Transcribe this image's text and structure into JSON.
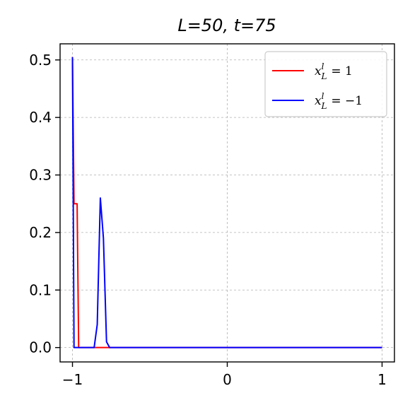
{
  "chart_data": {
    "type": "line",
    "title": "L=50, t=75",
    "xlabel": "",
    "ylabel": "",
    "xlim": [
      -1.08,
      1.08
    ],
    "ylim": [
      -0.025,
      0.528
    ],
    "xticks": [
      -1,
      0,
      1
    ],
    "xtick_labels": [
      "−1",
      "0",
      "1"
    ],
    "yticks": [
      0.0,
      0.1,
      0.2,
      0.3,
      0.4,
      0.5
    ],
    "ytick_labels": [
      "0.0",
      "0.1",
      "0.2",
      "0.3",
      "0.4",
      "0.5"
    ],
    "grid": true,
    "legend_position": "top-right",
    "series": [
      {
        "name": "x_L^l = 1",
        "color": "#ff0000",
        "x": [
          -1.0,
          -0.99,
          -0.98,
          -0.97,
          -0.96,
          -0.95,
          -0.9,
          -0.8,
          -0.5,
          0.0,
          0.5,
          1.0
        ],
        "y": [
          0.505,
          0.25,
          0.25,
          0.25,
          0.0,
          0.0,
          0.0,
          0.0,
          0.0,
          0.0,
          0.0,
          0.0
        ]
      },
      {
        "name": "x_L^l = −1",
        "color": "#0000ff",
        "x": [
          -1.0,
          -0.99,
          -0.98,
          -0.9,
          -0.88,
          -0.86,
          -0.84,
          -0.82,
          -0.8,
          -0.78,
          -0.76,
          -0.5,
          0.0,
          0.5,
          1.0
        ],
        "y": [
          0.505,
          0.0,
          0.0,
          0.0,
          0.0,
          0.0,
          0.04,
          0.26,
          0.19,
          0.01,
          0.0,
          0.0,
          0.0,
          0.0,
          0.0
        ]
      }
    ],
    "legend_labels": [
      {
        "base": "x",
        "sup": "l",
        "sub": "L",
        "rest": "= 1"
      },
      {
        "base": "x",
        "sup": "l",
        "sub": "L",
        "rest": "= −1"
      }
    ]
  }
}
